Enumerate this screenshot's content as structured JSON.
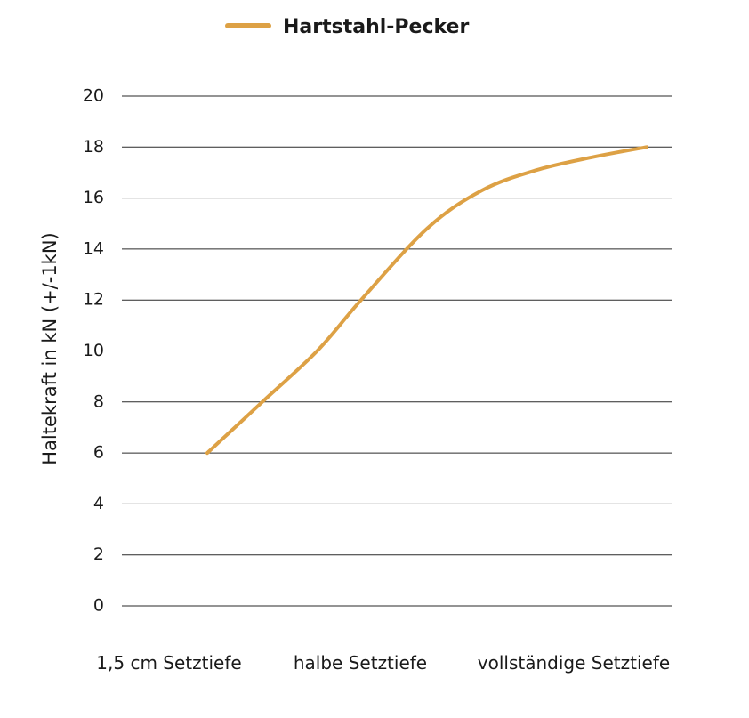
{
  "chart_data": {
    "type": "line",
    "title": "",
    "xlabel": "",
    "ylabel": "Haltekraft in kN (+/-1kN)",
    "ylim": [
      0,
      20
    ],
    "yticks": [
      0,
      2,
      4,
      6,
      8,
      10,
      12,
      14,
      16,
      18,
      20
    ],
    "grid": true,
    "legend_position": "top-center",
    "categories": [
      "1,5 cm Setztiefe",
      "halbe Setztiefe",
      "vollständige Setztiefe"
    ],
    "series": [
      {
        "name": "Hartstahl-Pecker",
        "color": "#DDA145",
        "x": [
          0,
          0.25,
          0.5,
          0.7,
          1.0,
          1.25,
          1.5,
          1.75,
          2.0
        ],
        "values": [
          6.0,
          8.0,
          10.0,
          12.0,
          14.8,
          16.3,
          17.1,
          17.6,
          18.0
        ]
      }
    ]
  }
}
